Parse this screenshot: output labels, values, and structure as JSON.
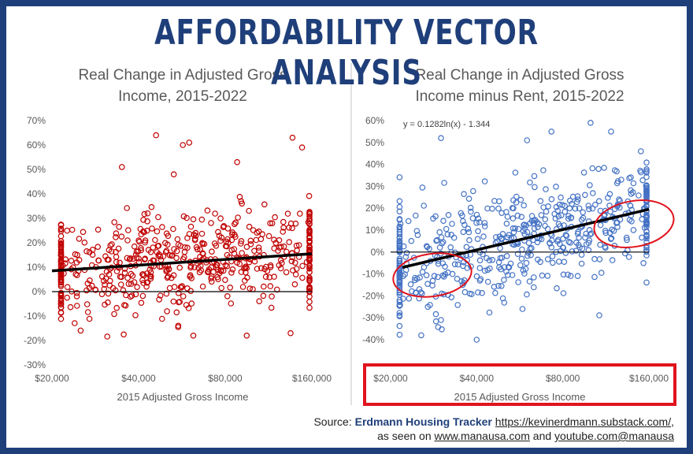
{
  "header": {
    "title": "AFFORDABILITY VECTOR ANALYSIS"
  },
  "source": {
    "prefix": "Source: ",
    "name": "Erdmann Housing Tracker",
    "url": "https://kevinerdmann.substack.com/",
    "line2_prefix": "as seen on ",
    "site": "www.manausa.com",
    "line2_mid": " and ",
    "youtube": "youtube.com@manausa",
    "comma": ","
  },
  "colors": {
    "frame": "#1f3f7a",
    "title": "#1f3f7a",
    "left_points": "#c00000",
    "right_points": "#4472c4",
    "trend": "#000000",
    "highlight": "#e0141e"
  },
  "chart_data": [
    {
      "type": "scatter",
      "title_lines": [
        "Real Change in Adjusted Gross",
        "Income, 2015-2022"
      ],
      "xlabel": "2015 Adjusted Gross Income",
      "ylabel": "",
      "x_scale": "log",
      "xlim": [
        20000,
        160000
      ],
      "ylim": [
        -30,
        70
      ],
      "x_ticks": [
        20000,
        40000,
        80000,
        160000
      ],
      "x_tick_labels": [
        "$20,000",
        "$40,000",
        "$80,000",
        "$160,000"
      ],
      "y_ticks": [
        -30,
        -20,
        -10,
        0,
        10,
        20,
        30,
        40,
        50,
        60,
        70
      ],
      "y_tick_labels": [
        "-30%",
        "-20%",
        "-10%",
        "0%",
        "10%",
        "20%",
        "30%",
        "40%",
        "50%",
        "60%",
        "70%"
      ],
      "trendline": {
        "type": "logarithmic",
        "from": [
          20000,
          8.5
        ],
        "to": [
          160000,
          15.5
        ]
      },
      "point_count": 600,
      "highlight_points": [
        [
          46000,
          64
        ],
        [
          60000,
          61
        ],
        [
          57000,
          60
        ],
        [
          137000,
          63
        ],
        [
          148000,
          59
        ],
        [
          35000,
          51
        ],
        [
          53000,
          48
        ],
        [
          88000,
          53
        ],
        [
          62000,
          -18
        ],
        [
          95000,
          -18
        ],
        [
          135000,
          -17
        ]
      ],
      "grid": false,
      "legend": "none"
    },
    {
      "type": "scatter",
      "title_lines": [
        "Real Change in Adjusted Gross",
        "Income minus Rent, 2015-2022"
      ],
      "xlabel": "2015 Adjusted Gross Income",
      "ylabel": "",
      "x_scale": "log",
      "xlim": [
        20000,
        160000
      ],
      "ylim": [
        -40,
        60
      ],
      "x_ticks": [
        20000,
        40000,
        80000,
        160000
      ],
      "x_tick_labels": [
        "$20,000",
        "$40,000",
        "$80,000",
        "$160,000"
      ],
      "y_ticks": [
        -40,
        -30,
        -20,
        -10,
        0,
        10,
        20,
        30,
        40,
        50,
        60
      ],
      "y_tick_labels": [
        "-40%",
        "-30%",
        "-20%",
        "-10%",
        "0%",
        "10%",
        "20%",
        "30%",
        "40%",
        "50%",
        "60%"
      ],
      "equation": "y = 0.1282ln(x) - 1.344",
      "trendline": {
        "type": "logarithmic",
        "from": [
          22000,
          -7
        ],
        "to": [
          160000,
          19.5
        ]
      },
      "point_count": 600,
      "highlight_points": [
        [
          100000,
          59
        ],
        [
          73000,
          55
        ],
        [
          118000,
          55
        ],
        [
          30000,
          52
        ],
        [
          30000,
          -31
        ],
        [
          27000,
          -25
        ],
        [
          40000,
          -40
        ],
        [
          60000,
          51
        ],
        [
          150000,
          46
        ]
      ],
      "annotations": [
        "left-ellipse",
        "right-ellipse",
        "x-axis-box"
      ],
      "grid": false,
      "legend": "none"
    }
  ]
}
